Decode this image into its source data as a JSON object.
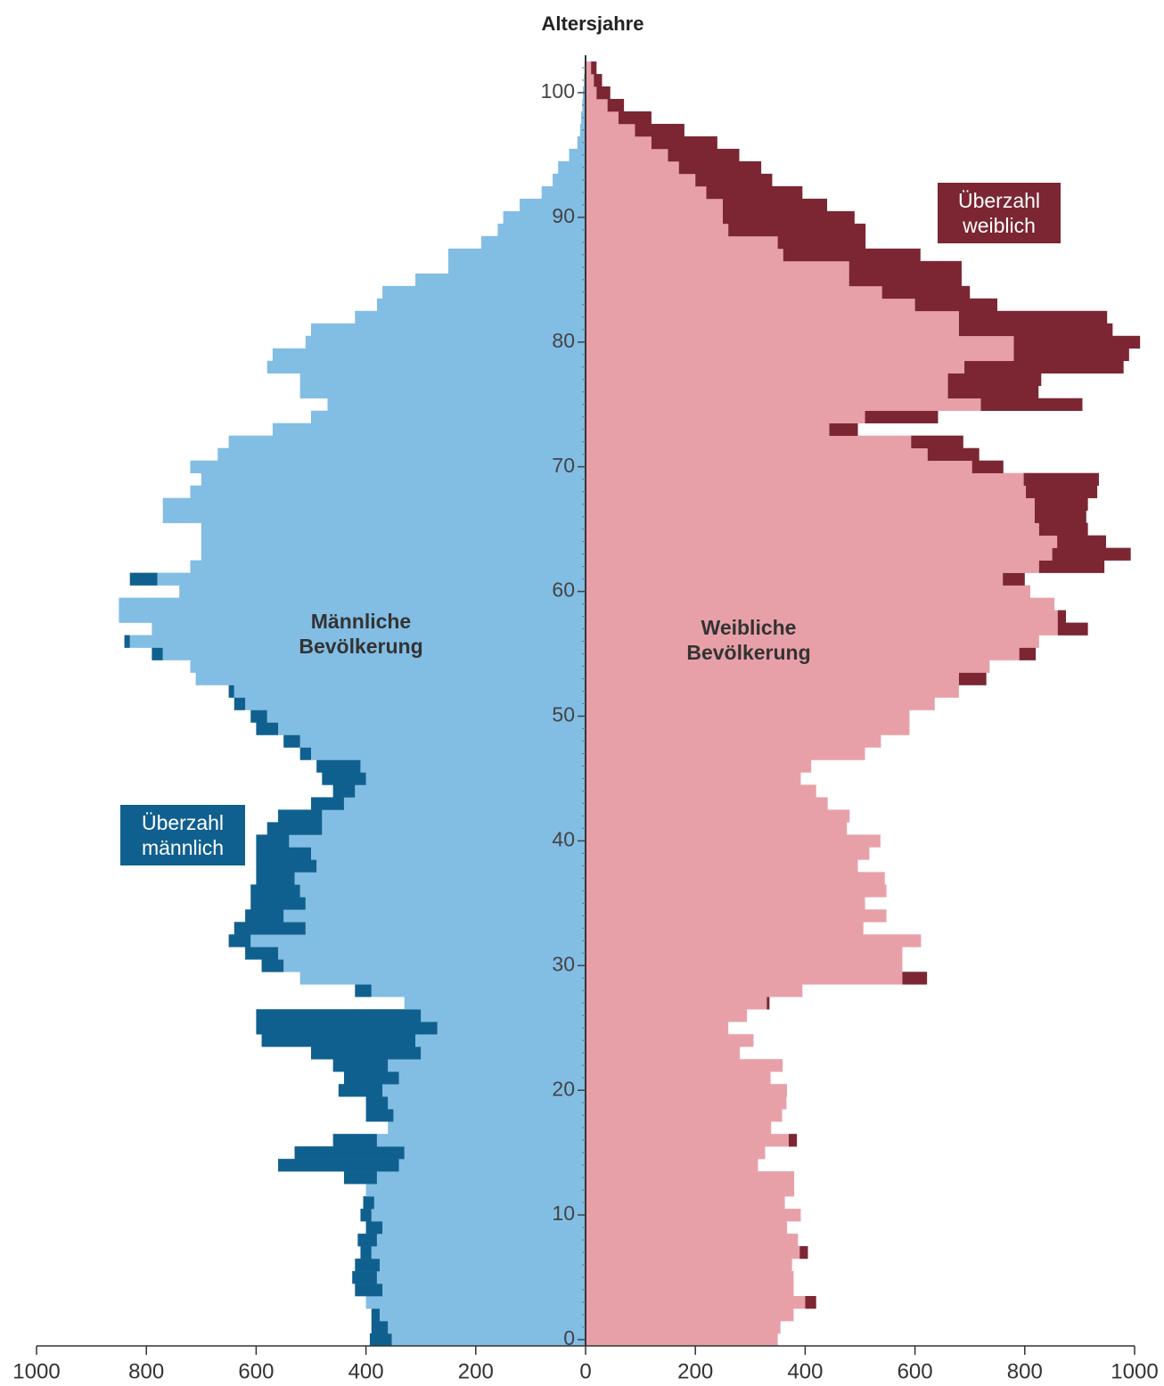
{
  "chart_data": {
    "type": "pyramid",
    "y_label": "Altersjahre",
    "categories": [
      0,
      1,
      2,
      3,
      4,
      5,
      6,
      7,
      8,
      9,
      10,
      11,
      12,
      13,
      14,
      15,
      16,
      17,
      18,
      19,
      20,
      21,
      22,
      23,
      24,
      25,
      26,
      27,
      28,
      29,
      30,
      31,
      32,
      33,
      34,
      35,
      36,
      37,
      38,
      39,
      40,
      41,
      42,
      43,
      44,
      45,
      46,
      47,
      48,
      49,
      50,
      51,
      52,
      53,
      54,
      55,
      56,
      57,
      58,
      59,
      60,
      61,
      62,
      63,
      64,
      65,
      66,
      67,
      68,
      69,
      70,
      71,
      72,
      73,
      74,
      75,
      76,
      77,
      78,
      79,
      80,
      81,
      82,
      83,
      84,
      85,
      86,
      87,
      88,
      89,
      90,
      91,
      92,
      93,
      94,
      95,
      96,
      97,
      98,
      99,
      100,
      101,
      102
    ],
    "series": [
      {
        "name": "Männliche Bevölkerung",
        "side": "left",
        "color": "#82bde4",
        "values": [
          353,
          360,
          375,
          400,
          370,
          380,
          375,
          390,
          380,
          370,
          390,
          385,
          400,
          380,
          340,
          330,
          380,
          360,
          350,
          360,
          370,
          340,
          360,
          300,
          310,
          270,
          300,
          330,
          390,
          520,
          550,
          560,
          610,
          510,
          550,
          510,
          520,
          530,
          490,
          500,
          540,
          480,
          480,
          440,
          420,
          400,
          410,
          500,
          520,
          560,
          580,
          620,
          640,
          710,
          720,
          770,
          830,
          790,
          850,
          850,
          740,
          780,
          720,
          700,
          700,
          700,
          770,
          770,
          720,
          700,
          720,
          670,
          650,
          570,
          500,
          470,
          520,
          520,
          580,
          570,
          510,
          500,
          420,
          380,
          370,
          310,
          250,
          250,
          190,
          160,
          150,
          120,
          80,
          60,
          50,
          30,
          15,
          10,
          8,
          6,
          5,
          3,
          2
        ]
      },
      {
        "name": "Überzahl männlich",
        "side": "left",
        "color": "#10608f",
        "values": [
          40,
          30,
          15,
          0,
          50,
          45,
          45,
          20,
          35,
          30,
          20,
          20,
          0,
          60,
          220,
          200,
          80,
          0,
          50,
          40,
          80,
          100,
          100,
          200,
          280,
          330,
          300,
          0,
          30,
          0,
          40,
          60,
          40,
          130,
          70,
          100,
          90,
          70,
          110,
          100,
          60,
          100,
          80,
          60,
          40,
          80,
          80,
          20,
          30,
          40,
          30,
          20,
          10,
          0,
          0,
          20,
          10,
          0,
          0,
          0,
          0,
          50,
          0,
          0,
          0,
          0,
          0,
          0,
          0,
          0,
          0,
          0,
          0,
          0,
          0,
          0,
          0,
          0,
          0,
          0,
          0,
          0,
          0,
          0,
          0,
          0,
          0,
          0,
          0,
          0,
          0,
          0,
          0,
          0,
          0,
          0,
          0,
          0,
          0,
          0,
          0,
          0,
          0
        ]
      },
      {
        "name": "Weibliche Bevölkerung",
        "side": "right",
        "color": "#e8a0a8",
        "values": [
          350,
          355,
          379,
          400,
          379,
          379,
          376,
          390,
          387,
          367,
          392,
          363,
          380,
          380,
          314,
          327,
          370,
          338,
          358,
          366,
          367,
          337,
          359,
          281,
          306,
          260,
          294,
          330,
          395,
          577,
          577,
          577,
          611,
          506,
          548,
          509,
          548,
          545,
          496,
          517,
          537,
          476,
          481,
          441,
          420,
          392,
          411,
          509,
          538,
          590,
          590,
          636,
          680,
          680,
          736,
          790,
          826,
          860,
          860,
          854,
          810,
          760,
          826,
          850,
          859,
          826,
          818,
          818,
          802,
          798,
          704,
          623,
          593,
          444,
          509,
          720,
          660,
          660,
          690,
          780,
          780,
          680,
          680,
          600,
          540,
          480,
          480,
          360,
          350,
          260,
          250,
          250,
          220,
          200,
          170,
          150,
          120,
          90,
          60,
          40,
          20,
          15,
          10
        ]
      },
      {
        "name": "Überzahl weiblich",
        "side": "right",
        "color": "#7b2632",
        "values": [
          0,
          0,
          0,
          20,
          0,
          0,
          0,
          15,
          0,
          0,
          0,
          0,
          0,
          0,
          0,
          0,
          15,
          0,
          0,
          0,
          0,
          0,
          0,
          0,
          0,
          0,
          0,
          5,
          0,
          45,
          0,
          0,
          0,
          0,
          0,
          0,
          0,
          0,
          0,
          0,
          0,
          0,
          0,
          0,
          0,
          0,
          0,
          0,
          0,
          0,
          0,
          0,
          0,
          50,
          0,
          30,
          0,
          55,
          15,
          0,
          0,
          40,
          119,
          143,
          89,
          89,
          94,
          97,
          130,
          137,
          57,
          94,
          95,
          52,
          133,
          185,
          165,
          170,
          290,
          210,
          230,
          280,
          270,
          150,
          160,
          205,
          205,
          250,
          160,
          250,
          240,
          190,
          175,
          140,
          150,
          130,
          120,
          90,
          60,
          30,
          25,
          15,
          10
        ]
      }
    ],
    "xlim": [
      -1000,
      1000
    ],
    "xticks": [
      {
        "value": -1000,
        "label": "1000"
      },
      {
        "value": -800,
        "label": "800"
      },
      {
        "value": -600,
        "label": "600"
      },
      {
        "value": -400,
        "label": "400"
      },
      {
        "value": -200,
        "label": "200"
      },
      0,
      200,
      400,
      600,
      800,
      1000
    ],
    "ylim": [
      -0.5,
      103
    ],
    "yticks": [
      0,
      10,
      20,
      30,
      40,
      50,
      60,
      70,
      80,
      90,
      100
    ]
  }
}
